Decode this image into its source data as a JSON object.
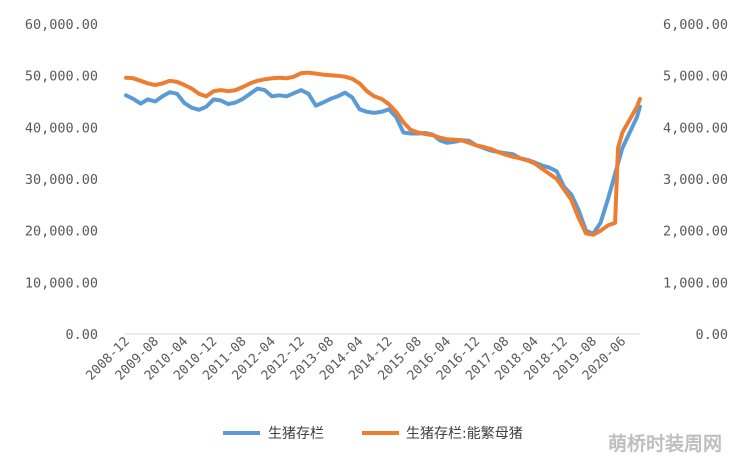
{
  "chart_data": {
    "type": "line",
    "x": [
      "2008-12",
      "2009-08",
      "2010-04",
      "2010-12",
      "2011-08",
      "2012-04",
      "2012-12",
      "2013-08",
      "2014-04",
      "2014-12",
      "2015-08",
      "2016-04",
      "2016-12",
      "2017-08",
      "2018-04",
      "2018-12",
      "2019-08",
      "2020-06"
    ],
    "left_axis": {
      "ylim": [
        0,
        60000
      ],
      "ticks": [
        "0.00",
        "10,000.00",
        "20,000.00",
        "30,000.00",
        "40,000.00",
        "50,000.00",
        "60,000.00"
      ]
    },
    "right_axis": {
      "ylim": [
        0,
        6000
      ],
      "ticks": [
        "0.00",
        "1,000.00",
        "2,000.00",
        "3,000.00",
        "4,000.00",
        "5,000.00",
        "6,000.00"
      ]
    },
    "grid": false,
    "legend_position": "bottom",
    "series": [
      {
        "name": "生猪存栏",
        "axis": "left",
        "color": "#5b9bd5",
        "points": [
          [
            0,
            46200
          ],
          [
            0.25,
            45500
          ],
          [
            0.5,
            44600
          ],
          [
            0.75,
            45400
          ],
          [
            1.0,
            45000
          ],
          [
            1.25,
            46000
          ],
          [
            1.5,
            46800
          ],
          [
            1.75,
            46500
          ],
          [
            2.0,
            44700
          ],
          [
            2.25,
            43800
          ],
          [
            2.5,
            43400
          ],
          [
            2.75,
            44000
          ],
          [
            3.0,
            45400
          ],
          [
            3.25,
            45200
          ],
          [
            3.5,
            44500
          ],
          [
            3.75,
            44800
          ],
          [
            4.0,
            45500
          ],
          [
            4.25,
            46500
          ],
          [
            4.5,
            47500
          ],
          [
            4.75,
            47200
          ],
          [
            5.0,
            46000
          ],
          [
            5.25,
            46200
          ],
          [
            5.5,
            46000
          ],
          [
            5.75,
            46600
          ],
          [
            6.0,
            47200
          ],
          [
            6.25,
            46500
          ],
          [
            6.5,
            44200
          ],
          [
            6.75,
            44800
          ],
          [
            7.0,
            45500
          ],
          [
            7.25,
            46000
          ],
          [
            7.5,
            46700
          ],
          [
            7.75,
            45800
          ],
          [
            8.0,
            43500
          ],
          [
            8.25,
            43000
          ],
          [
            8.5,
            42800
          ],
          [
            8.75,
            43000
          ],
          [
            9.0,
            43500
          ],
          [
            9.25,
            42000
          ],
          [
            9.5,
            39000
          ],
          [
            9.75,
            38800
          ],
          [
            10.0,
            38800
          ],
          [
            10.25,
            38900
          ],
          [
            10.5,
            38600
          ],
          [
            10.75,
            37500
          ],
          [
            11.0,
            37000
          ],
          [
            11.25,
            37200
          ],
          [
            11.5,
            37500
          ],
          [
            11.75,
            37400
          ],
          [
            12.0,
            36500
          ],
          [
            12.25,
            36000
          ],
          [
            12.5,
            35500
          ],
          [
            12.75,
            35200
          ],
          [
            13.0,
            35000
          ],
          [
            13.25,
            34800
          ],
          [
            13.5,
            34000
          ],
          [
            13.75,
            33700
          ],
          [
            14.0,
            33200
          ],
          [
            14.25,
            32600
          ],
          [
            14.5,
            32200
          ],
          [
            14.75,
            31500
          ],
          [
            15.0,
            28500
          ],
          [
            15.25,
            27000
          ],
          [
            15.5,
            24000
          ],
          [
            15.75,
            20000
          ],
          [
            16.0,
            19400
          ],
          [
            16.25,
            21500
          ],
          [
            16.5,
            26000
          ],
          [
            16.75,
            31000
          ],
          [
            17.0,
            36000
          ],
          [
            17.25,
            39000
          ],
          [
            17.5,
            42000
          ],
          [
            17.6,
            44000
          ]
        ]
      },
      {
        "name": "生猪存栏:能繁母猪",
        "axis": "right",
        "color": "#ed7d31",
        "points": [
          [
            0,
            4960
          ],
          [
            0.25,
            4950
          ],
          [
            0.5,
            4900
          ],
          [
            0.75,
            4850
          ],
          [
            1.0,
            4820
          ],
          [
            1.25,
            4850
          ],
          [
            1.5,
            4900
          ],
          [
            1.75,
            4880
          ],
          [
            2.0,
            4820
          ],
          [
            2.25,
            4750
          ],
          [
            2.5,
            4650
          ],
          [
            2.75,
            4600
          ],
          [
            3.0,
            4700
          ],
          [
            3.25,
            4720
          ],
          [
            3.5,
            4700
          ],
          [
            3.75,
            4720
          ],
          [
            4.0,
            4780
          ],
          [
            4.25,
            4850
          ],
          [
            4.5,
            4900
          ],
          [
            4.75,
            4930
          ],
          [
            5.0,
            4950
          ],
          [
            5.25,
            4960
          ],
          [
            5.5,
            4950
          ],
          [
            5.75,
            4980
          ],
          [
            6.0,
            5050
          ],
          [
            6.25,
            5060
          ],
          [
            6.5,
            5040
          ],
          [
            6.75,
            5020
          ],
          [
            7.0,
            5010
          ],
          [
            7.25,
            5000
          ],
          [
            7.5,
            4980
          ],
          [
            7.75,
            4940
          ],
          [
            8.0,
            4850
          ],
          [
            8.25,
            4700
          ],
          [
            8.5,
            4600
          ],
          [
            8.75,
            4550
          ],
          [
            9.0,
            4450
          ],
          [
            9.25,
            4300
          ],
          [
            9.5,
            4100
          ],
          [
            9.75,
            3950
          ],
          [
            10.0,
            3900
          ],
          [
            10.25,
            3870
          ],
          [
            10.5,
            3850
          ],
          [
            10.75,
            3800
          ],
          [
            11.0,
            3770
          ],
          [
            11.25,
            3760
          ],
          [
            11.5,
            3750
          ],
          [
            11.75,
            3700
          ],
          [
            12.0,
            3650
          ],
          [
            12.25,
            3620
          ],
          [
            12.5,
            3580
          ],
          [
            12.75,
            3520
          ],
          [
            13.0,
            3470
          ],
          [
            13.25,
            3430
          ],
          [
            13.5,
            3400
          ],
          [
            13.75,
            3360
          ],
          [
            14.0,
            3300
          ],
          [
            14.25,
            3200
          ],
          [
            14.5,
            3100
          ],
          [
            14.75,
            3000
          ],
          [
            15.0,
            2800
          ],
          [
            15.25,
            2600
          ],
          [
            15.5,
            2250
          ],
          [
            15.75,
            1950
          ],
          [
            16.0,
            1920
          ],
          [
            16.25,
            2000
          ],
          [
            16.5,
            2100
          ],
          [
            16.75,
            2150
          ],
          [
            16.85,
            3600
          ],
          [
            17.0,
            3900
          ],
          [
            17.25,
            4150
          ],
          [
            17.5,
            4400
          ],
          [
            17.6,
            4550
          ]
        ]
      }
    ]
  },
  "watermark": "萌桥时装周网"
}
